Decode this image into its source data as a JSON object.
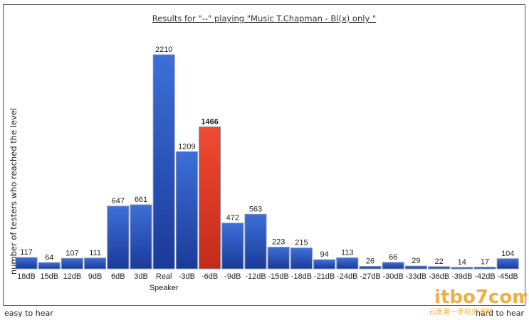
{
  "chart_data": {
    "type": "bar",
    "title": "Results for \"--\" playing \"Music T.Chapman - Bl(x) only \"",
    "ylabel": "number of testers who reached the level",
    "xlabel": "",
    "categories": [
      "18dB",
      "15dB",
      "12dB",
      "9dB",
      "6dB",
      "3dB",
      "Real Speaker",
      "-3dB",
      "-6dB",
      "-9dB",
      "-12dB",
      "-15dB",
      "-18dB",
      "-21dB",
      "-24dB",
      "-27dB",
      "-30dB",
      "-33dB",
      "-36dB",
      "-39dB",
      "-42dB",
      "-45dB"
    ],
    "values": [
      117,
      64,
      107,
      111,
      647,
      661,
      2210,
      1209,
      1466,
      472,
      563,
      223,
      215,
      94,
      113,
      26,
      66,
      29,
      22,
      14,
      17,
      104
    ],
    "highlight_category": "-6dB",
    "ylim": [
      0,
      2210
    ],
    "grid": false,
    "legend": "none"
  },
  "footer": {
    "left": "easy to hear",
    "right": "hard to hear"
  },
  "colors": {
    "bar": "#2f5fc4",
    "highlight": "#e8412c",
    "bar_edge": "#7f8fb0"
  },
  "watermark": {
    "text": "itbo7com",
    "sub": "云南第一手机资讯网"
  }
}
